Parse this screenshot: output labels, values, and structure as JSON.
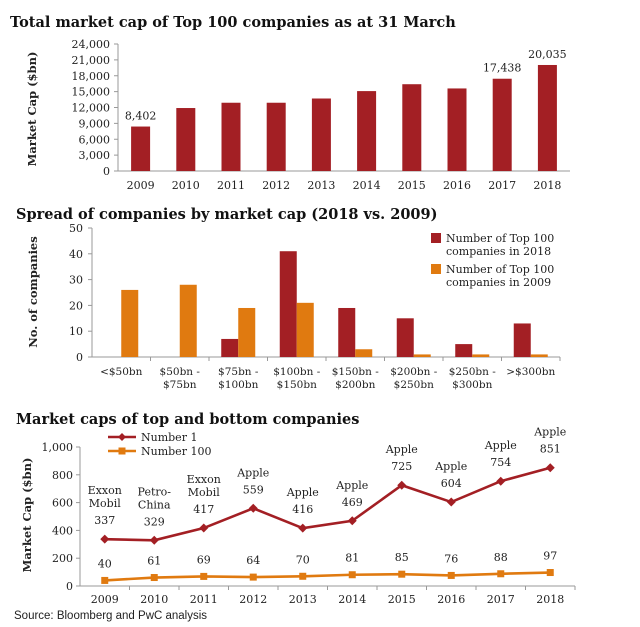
{
  "source": "Source: Bloomberg and PwC analysis",
  "chart_data": [
    {
      "type": "bar",
      "title": "Total market cap of Top 100 companies as at 31 March",
      "ylabel": "Market Cap ($bn)",
      "xlabel": "",
      "ylim": [
        0,
        24000
      ],
      "yticks": [
        0,
        3000,
        6000,
        9000,
        12000,
        15000,
        18000,
        21000,
        24000
      ],
      "ytick_labels": [
        "0",
        "3,000",
        "6,000",
        "9,000",
        "12,000",
        "15,000",
        "18,000",
        "21,000",
        "24,000"
      ],
      "categories": [
        "2009",
        "2010",
        "2011",
        "2012",
        "2013",
        "2014",
        "2015",
        "2016",
        "2017",
        "2018"
      ],
      "values": [
        8402,
        11900,
        12900,
        12900,
        13700,
        15100,
        16400,
        15600,
        17438,
        20035
      ],
      "labels": [
        "8,402",
        "",
        "",
        "",
        "",
        "",
        "",
        "",
        "17,438",
        "20,035"
      ],
      "color": "#A31F24"
    },
    {
      "type": "bar",
      "title": "Spread of companies by market cap (2018 vs. 2009)",
      "ylabel": "No. of companies",
      "ylim": [
        0,
        50
      ],
      "yticks": [
        0,
        10,
        20,
        30,
        40,
        50
      ],
      "categories": [
        [
          "<$50bn"
        ],
        [
          "$50bn -",
          "$75bn"
        ],
        [
          "$75bn -",
          "$100bn"
        ],
        [
          "$100bn -",
          "$150bn"
        ],
        [
          "$150bn -",
          "$200bn"
        ],
        [
          "$200bn -",
          "$250bn"
        ],
        [
          "$250bn -",
          "$300bn"
        ],
        [
          ">$300bn"
        ]
      ],
      "series": [
        {
          "name": "Number of Top 100 companies in 2018",
          "legend_lines": [
            "Number of Top 100",
            "companies in 2018"
          ],
          "color": "#A31F24",
          "values": [
            0,
            0,
            7,
            41,
            19,
            15,
            5,
            13
          ]
        },
        {
          "name": "Number of Top 100 companies in 2009",
          "legend_lines": [
            "Number of Top 100",
            "companies in 2009"
          ],
          "color": "#E07A10",
          "values": [
            26,
            28,
            19,
            21,
            3,
            1,
            1,
            1
          ]
        }
      ]
    },
    {
      "type": "line",
      "title": "Market caps of top and bottom companies",
      "ylabel": "Market Cap ($bn)",
      "ylim": [
        0,
        1000
      ],
      "yticks": [
        0,
        200,
        400,
        600,
        800,
        1000
      ],
      "ytick_labels": [
        "0",
        "200",
        "400",
        "600",
        "800",
        "1,000"
      ],
      "x": [
        "2009",
        "2010",
        "2011",
        "2012",
        "2013",
        "2014",
        "2015",
        "2016",
        "2017",
        "2018"
      ],
      "series": [
        {
          "name": "Number 1",
          "color": "#A31F24",
          "marker": "diamond",
          "values": [
            337,
            329,
            417,
            559,
            416,
            469,
            725,
            604,
            754,
            851
          ],
          "company_labels": [
            [
              "Exxon",
              "Mobil"
            ],
            [
              "Petro-",
              "China"
            ],
            [
              "Exxon",
              "Mobil"
            ],
            [
              "Apple"
            ],
            [
              "Apple"
            ],
            [
              "Apple"
            ],
            [
              "Apple"
            ],
            [
              "Apple"
            ],
            [
              "Apple"
            ],
            [
              "Apple"
            ]
          ]
        },
        {
          "name": "Number 100",
          "color": "#E07A10",
          "marker": "square",
          "values": [
            40,
            61,
            69,
            64,
            70,
            81,
            85,
            76,
            88,
            97
          ]
        }
      ]
    }
  ]
}
